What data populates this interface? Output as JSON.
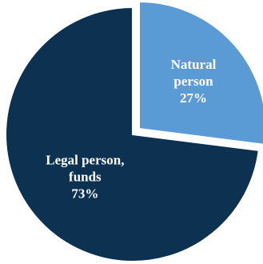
{
  "chart_data": {
    "type": "pie",
    "categories": [
      "Natural person",
      "Legal person, funds"
    ],
    "values": [
      27,
      73
    ],
    "unit": "%",
    "colors": [
      "#5b9bd5",
      "#0d3151"
    ],
    "exploded": "Natural person",
    "legend": "none",
    "labels": [
      {
        "lines": [
          "Natural",
          "person"
        ],
        "value": "27%"
      },
      {
        "lines": [
          "Legal person,",
          "funds"
        ],
        "value": "73%"
      }
    ]
  }
}
